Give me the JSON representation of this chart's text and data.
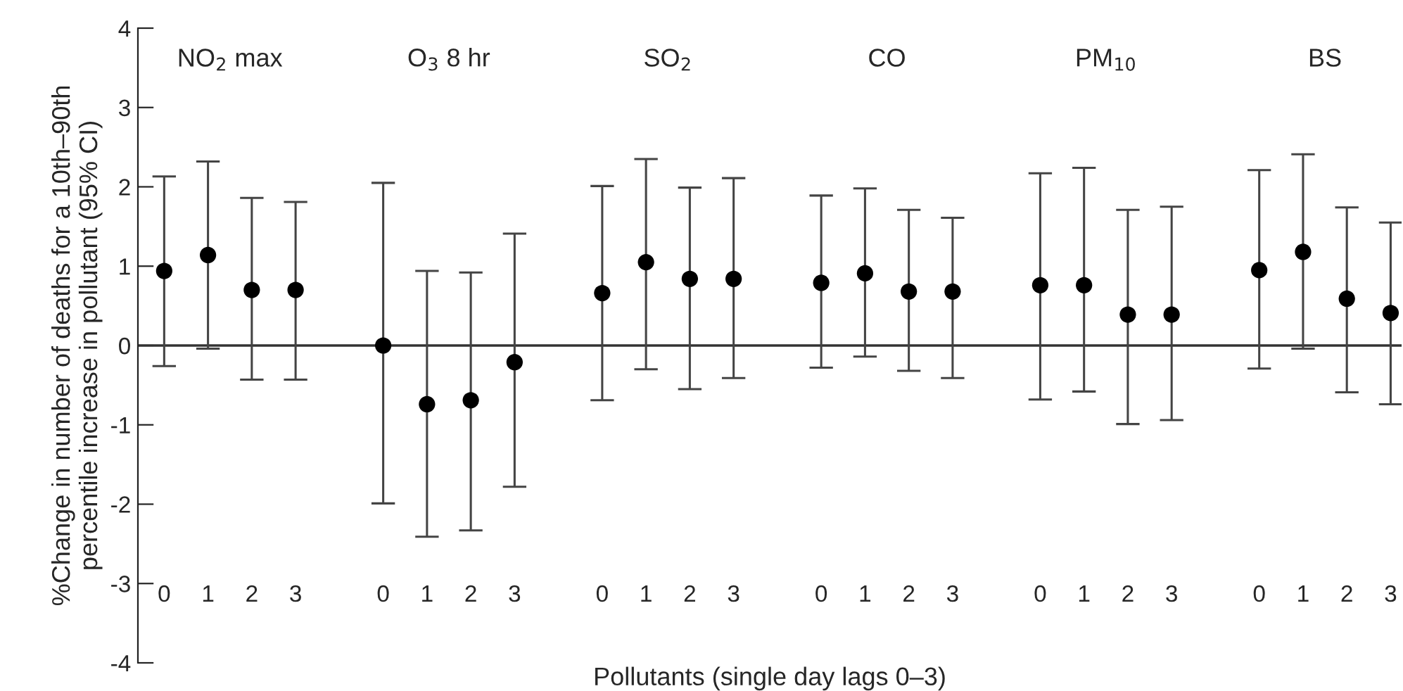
{
  "chart_data": {
    "type": "scatter",
    "xlabel": "Pollutants (single day lags 0–3)",
    "ylabel": "%Change in number of deaths for a 10th–90th\npercentile increase in pollutant (95% CI)",
    "categories": [
      "0",
      "1",
      "2",
      "3",
      null,
      "0",
      "1",
      "2",
      "3",
      null,
      "0",
      "1",
      "2",
      "3",
      null,
      "0",
      "1",
      "2",
      "3",
      null,
      "0",
      "1",
      "2",
      "3",
      null,
      "0",
      "1",
      "2",
      "3"
    ],
    "series": [
      {
        "color": "#000000",
        "marker": "circle",
        "values": [
          0.94,
          1.14,
          0.7,
          0.7,
          null,
          0.0,
          -0.74,
          -0.69,
          -0.21,
          null,
          0.66,
          1.05,
          0.84,
          0.84,
          null,
          0.79,
          0.91,
          0.68,
          0.68,
          null,
          0.76,
          0.76,
          0.39,
          0.39,
          null,
          0.95,
          1.18,
          0.59,
          0.41
        ],
        "errors": [
          [
            -0.26,
            2.13
          ],
          [
            -0.04,
            2.32
          ],
          [
            -0.43,
            1.86
          ],
          [
            -0.43,
            1.81
          ],
          null,
          [
            -1.99,
            2.05
          ],
          [
            -2.41,
            0.94
          ],
          [
            -2.33,
            0.92
          ],
          [
            -1.78,
            1.41
          ],
          null,
          [
            -0.69,
            2.01
          ],
          [
            -0.3,
            2.35
          ],
          [
            -0.55,
            1.99
          ],
          [
            -0.41,
            2.11
          ],
          null,
          [
            -0.28,
            1.89
          ],
          [
            -0.14,
            1.98
          ],
          [
            -0.32,
            1.71
          ],
          [
            -0.41,
            1.61
          ],
          null,
          [
            -0.68,
            2.17
          ],
          [
            -0.58,
            2.24
          ],
          [
            -0.99,
            1.71
          ],
          [
            -0.94,
            1.75
          ],
          null,
          [
            -0.29,
            2.21
          ],
          [
            -0.04,
            2.41
          ],
          [
            -0.59,
            1.74
          ],
          [
            -0.74,
            1.55
          ]
        ]
      }
    ],
    "annotations": [
      "NO$_{2}$ max",
      "O$_{3}$ 8 hr",
      "SO$_{2}$",
      "CO",
      "PM$_{10}$",
      "BS"
    ],
    "ylim": [
      -4,
      4
    ],
    "yticks": [
      -4,
      -3,
      -2,
      -1,
      0,
      1,
      2,
      3,
      4
    ],
    "ref_lines": [
      {
        "axis": "y",
        "value": 0,
        "color": "#333333"
      }
    ],
    "grid": false,
    "legend": false
  }
}
